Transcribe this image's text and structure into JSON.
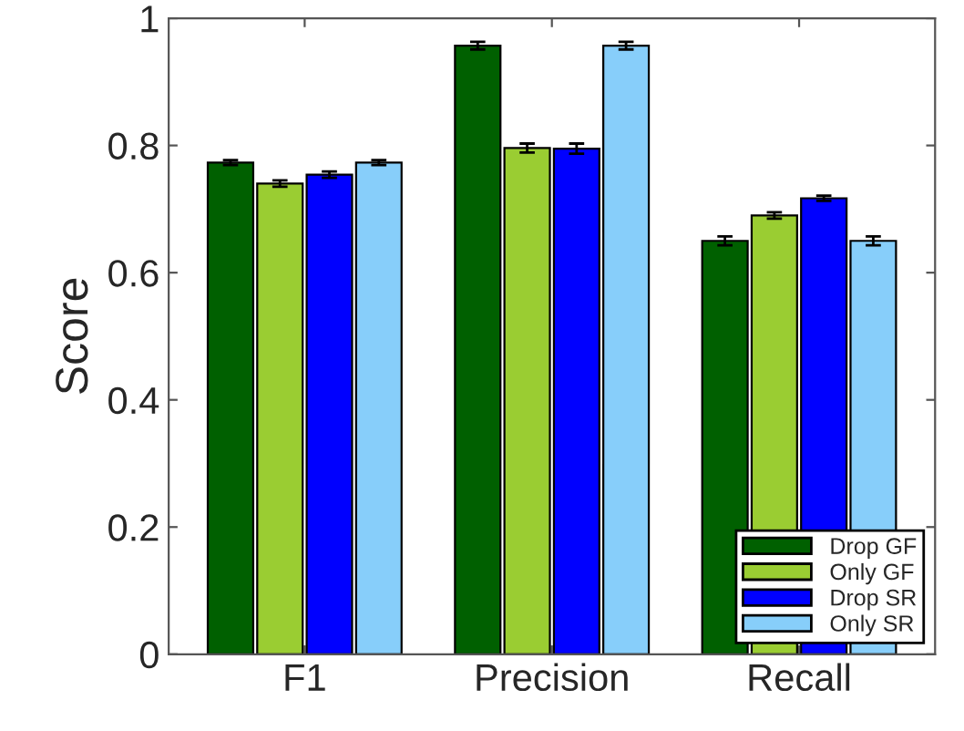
{
  "chart_data": {
    "type": "bar",
    "ylabel": "Score",
    "categories": [
      "F1",
      "Precision",
      "Recall"
    ],
    "series": [
      {
        "name": "Drop GF",
        "color": "#006000",
        "values": [
          0.773,
          0.957,
          0.65
        ],
        "errors": [
          0.004,
          0.006,
          0.007
        ]
      },
      {
        "name": "Only GF",
        "color": "#9acd32",
        "values": [
          0.74,
          0.796,
          0.69
        ],
        "errors": [
          0.005,
          0.007,
          0.005
        ]
      },
      {
        "name": "Drop SR",
        "color": "#0000ff",
        "values": [
          0.754,
          0.795,
          0.717
        ],
        "errors": [
          0.005,
          0.008,
          0.004
        ]
      },
      {
        "name": "Only SR",
        "color": "#87cefa",
        "values": [
          0.773,
          0.957,
          0.65
        ],
        "errors": [
          0.004,
          0.006,
          0.007
        ]
      }
    ],
    "ylim": [
      0,
      1
    ],
    "yticks": [
      0,
      0.2,
      0.4,
      0.6,
      0.8,
      1
    ],
    "grid": false,
    "legend": "bottom right"
  }
}
